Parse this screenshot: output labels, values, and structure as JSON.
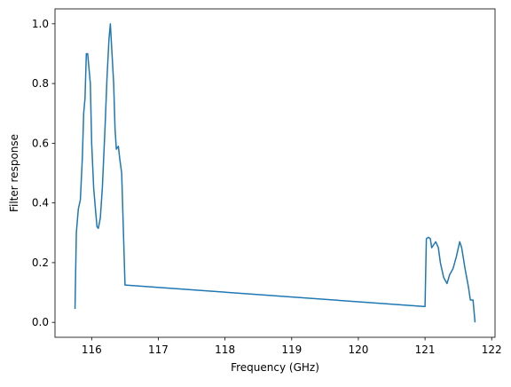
{
  "chart_data": {
    "type": "line",
    "xlabel": "Frequency (GHz)",
    "ylabel": "Filter response",
    "color": "#1f77b4",
    "x": [
      115.75,
      115.77,
      115.8,
      115.83,
      115.86,
      115.88,
      115.9,
      115.92,
      115.94,
      115.96,
      115.98,
      116.0,
      116.03,
      116.06,
      116.08,
      116.1,
      116.13,
      116.16,
      116.2,
      116.23,
      116.26,
      116.28,
      116.3,
      116.33,
      116.35,
      116.37,
      116.4,
      116.42,
      116.45,
      116.5,
      121.0,
      121.02,
      121.05,
      121.08,
      121.1,
      121.13,
      121.16,
      121.2,
      121.23,
      121.28,
      121.33,
      121.37,
      121.42,
      121.47,
      121.5,
      121.52,
      121.55,
      121.6,
      121.65,
      121.68,
      121.72,
      121.75
    ],
    "values": [
      0.045,
      0.3,
      0.38,
      0.41,
      0.55,
      0.7,
      0.75,
      0.9,
      0.9,
      0.85,
      0.8,
      0.6,
      0.45,
      0.37,
      0.32,
      0.315,
      0.35,
      0.45,
      0.65,
      0.82,
      0.95,
      1.0,
      0.92,
      0.8,
      0.65,
      0.58,
      0.59,
      0.55,
      0.5,
      0.125,
      0.053,
      0.28,
      0.285,
      0.28,
      0.25,
      0.26,
      0.27,
      0.25,
      0.2,
      0.15,
      0.13,
      0.16,
      0.18,
      0.22,
      0.25,
      0.27,
      0.25,
      0.18,
      0.12,
      0.075,
      0.075,
      0.0
    ],
    "xlim": [
      115.45,
      122.05
    ],
    "xticks": [
      116,
      117,
      118,
      119,
      120,
      121,
      122
    ],
    "ylim": [
      -0.05,
      1.05
    ],
    "yticks": [
      {
        "value": 0,
        "label": "0.0"
      },
      {
        "value": 0.2,
        "label": "0.2"
      },
      {
        "value": 0.4,
        "label": "0.4"
      },
      {
        "value": 0.6,
        "label": "0.6"
      },
      {
        "value": 0.8,
        "label": "0.8"
      },
      {
        "value": 1,
        "label": "1.0"
      }
    ],
    "grid": false
  }
}
